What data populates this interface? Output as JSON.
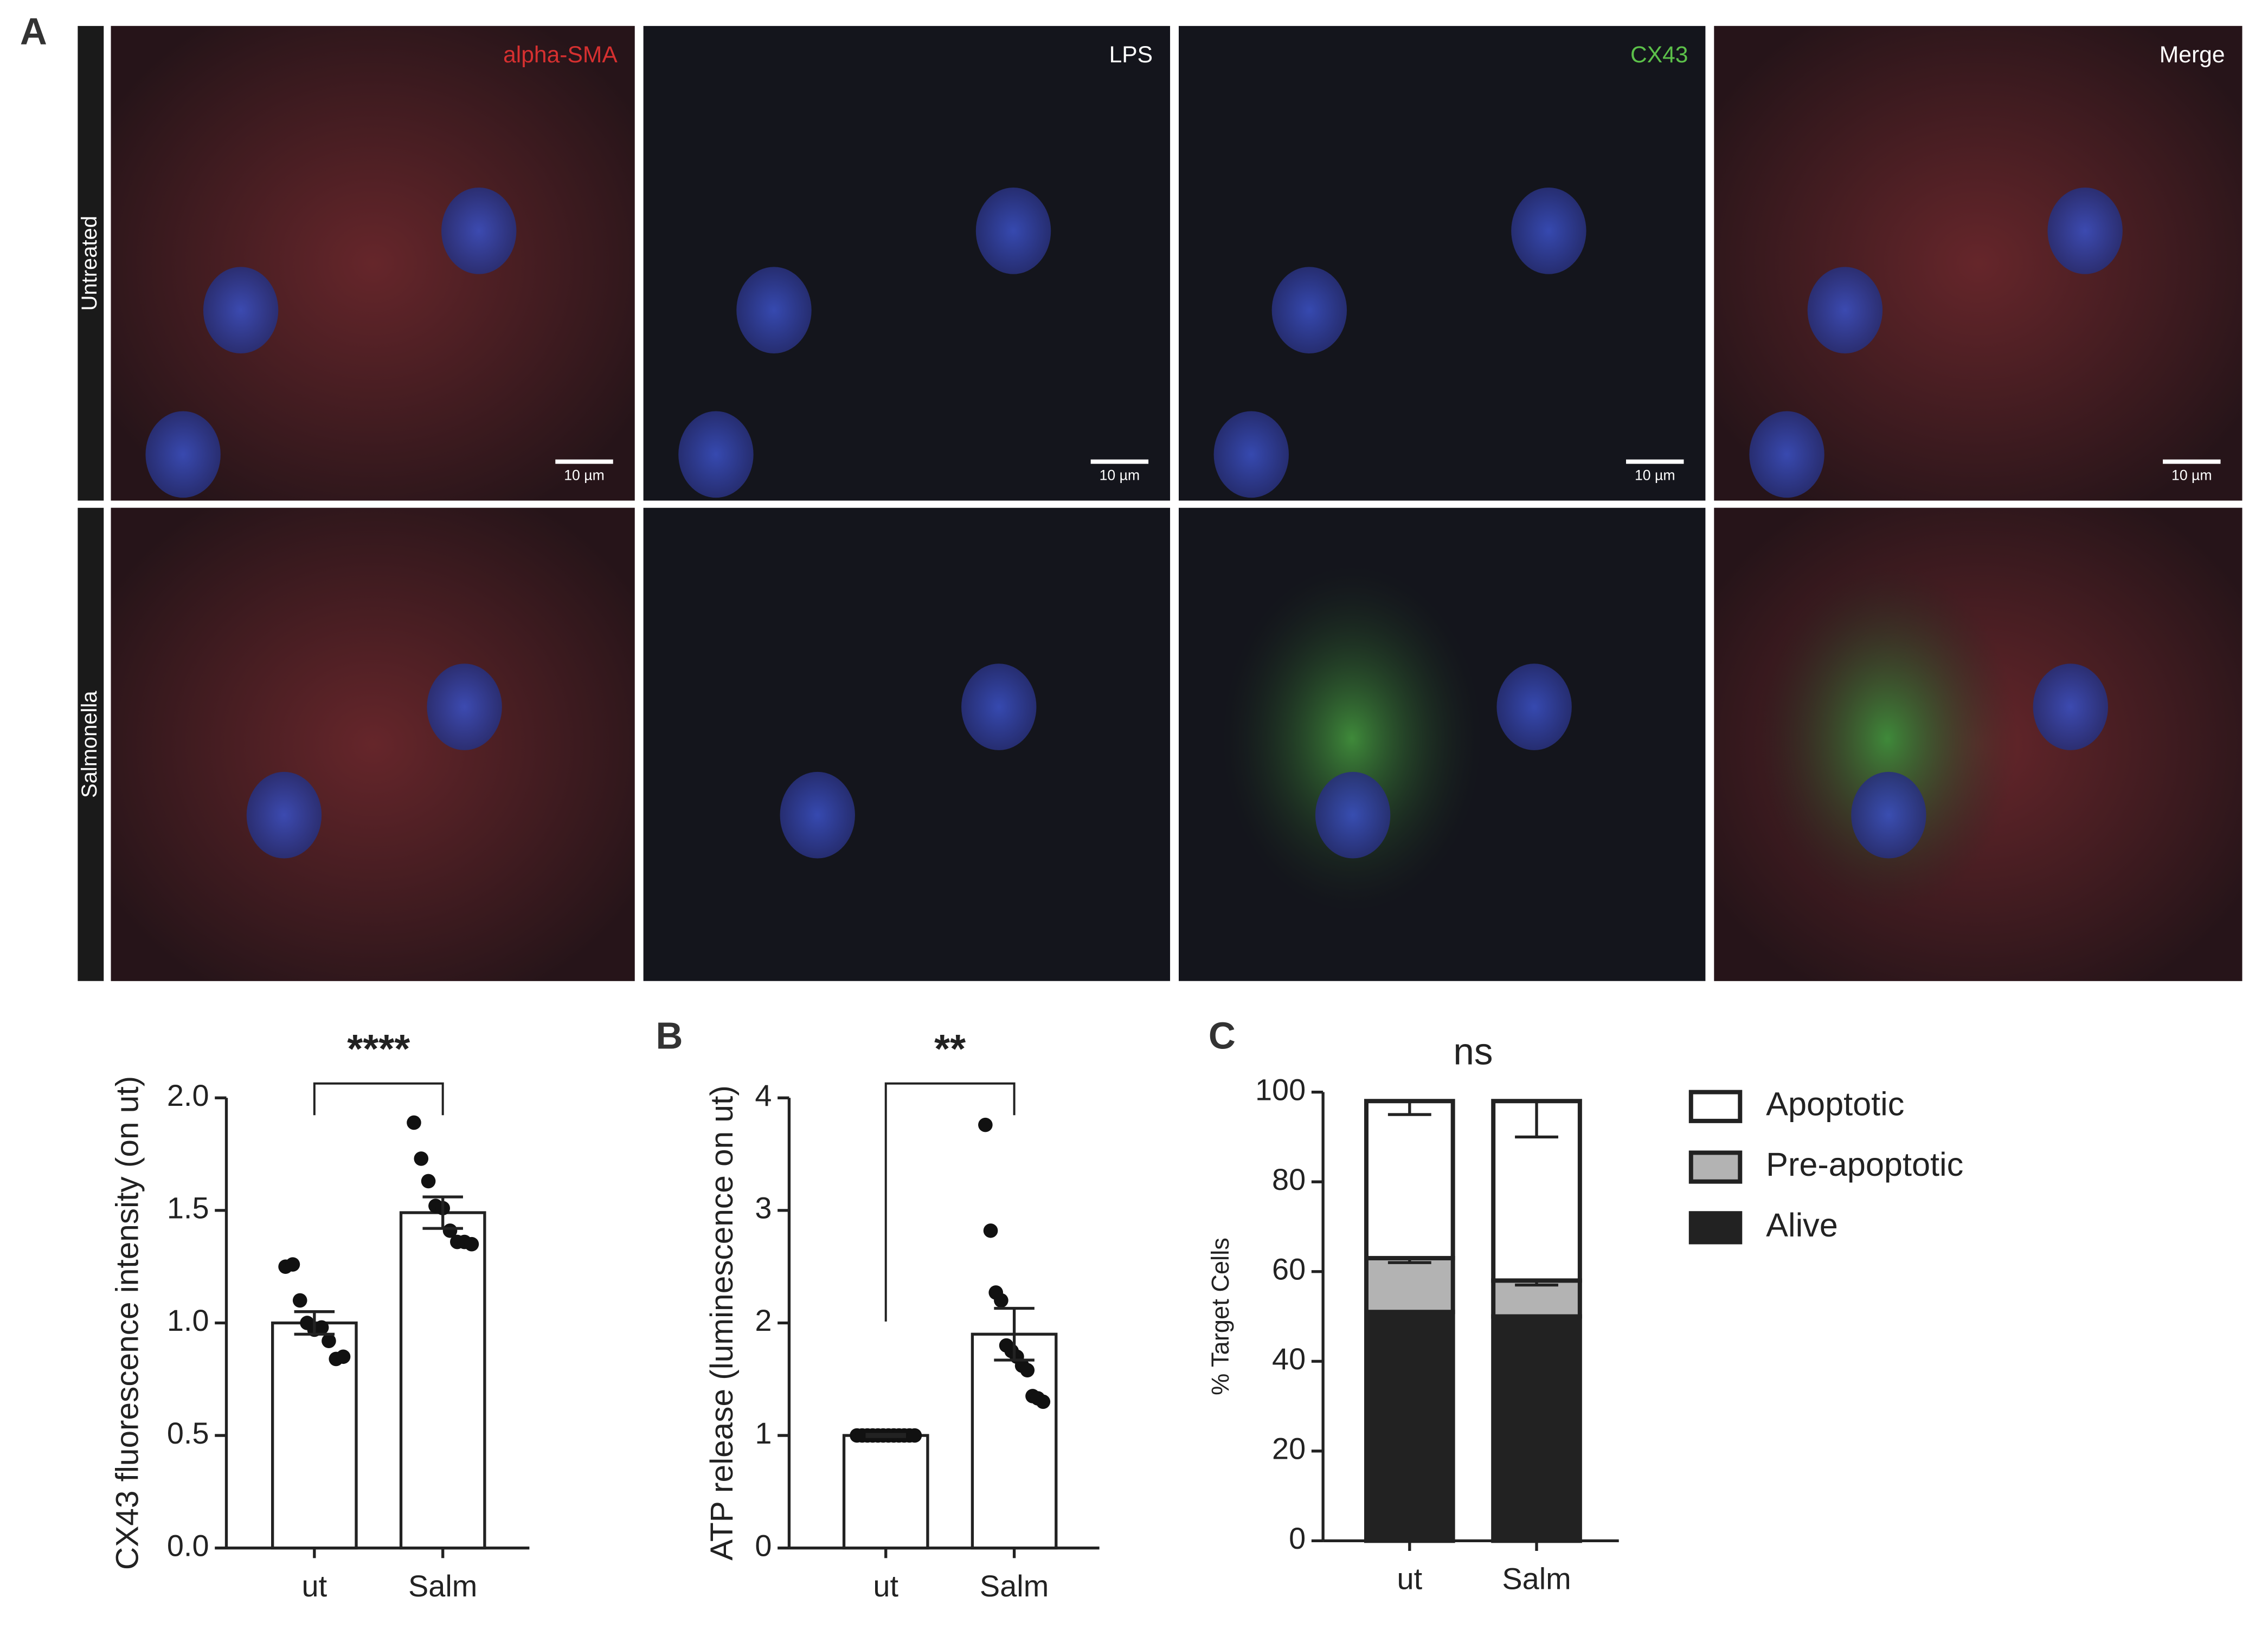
{
  "figure": {
    "panel_labels": [
      "A",
      "B",
      "C"
    ],
    "channels": [
      "alpha-SMA",
      "LPS",
      "CX43",
      "Merge"
    ],
    "rows": [
      "Untreated",
      "Salmonella"
    ],
    "scale_bar": "10 µm"
  },
  "chart_data": [
    {
      "type": "bar",
      "y_label": "CX43 fluorescence intensity (on ut)",
      "significance": "****",
      "categories": [
        "ut",
        "Salm"
      ],
      "values": [
        1.0,
        1.49
      ],
      "errors": [
        0.05,
        0.07
      ],
      "color": "#ffffff",
      "points": [
        [
          1.25,
          1.26,
          1.1,
          1.0,
          0.97,
          0.98,
          0.92,
          0.84,
          0.85
        ],
        [
          1.89,
          1.73,
          1.63,
          1.52,
          1.51,
          1.41,
          1.36,
          1.36,
          1.35
        ]
      ],
      "ylim": [
        0,
        2
      ],
      "yticks": [
        {
          "value": 0,
          "label": "0.0"
        },
        {
          "value": 0.5,
          "label": "0.5"
        },
        {
          "value": 1,
          "label": "1.0"
        },
        {
          "value": 1.5,
          "label": "1.5"
        },
        {
          "value": 2,
          "label": "2.0"
        }
      ]
    },
    {
      "type": "bar",
      "y_label": "ATP release (luminescence on ut)",
      "significance": "**",
      "categories": [
        "ut",
        "Salm"
      ],
      "values": [
        1.0,
        1.9
      ],
      "errors": [
        0.01,
        0.23
      ],
      "color": "#ffffff",
      "points": [
        [
          1,
          1,
          1,
          1,
          1,
          1,
          1,
          1,
          1,
          1,
          1,
          1
        ],
        [
          3.76,
          2.82,
          2.27,
          2.2,
          1.8,
          1.75,
          1.7,
          1.62,
          1.58,
          1.35,
          1.33,
          1.3
        ]
      ],
      "ylim": [
        0,
        4
      ],
      "yticks": [
        0,
        1,
        2,
        3,
        4
      ]
    },
    {
      "type": "stacked_bar",
      "y_label": "% Target Cells",
      "significance": "ns",
      "categories": [
        "ut",
        "Salm"
      ],
      "series": [
        {
          "name": "Alive",
          "color": "#222222",
          "values": [
            51,
            50
          ]
        },
        {
          "name": "Pre-apoptotic",
          "color": "#b3b3b3",
          "values": [
            12,
            8
          ],
          "errors": [
            1,
            1
          ]
        },
        {
          "name": "Apoptotic",
          "color": "#ffffff",
          "values": [
            35,
            40
          ],
          "errors": [
            3,
            8
          ]
        }
      ],
      "ylim": [
        0,
        100
      ],
      "yticks": [
        0,
        20,
        40,
        60,
        80,
        100
      ]
    }
  ]
}
